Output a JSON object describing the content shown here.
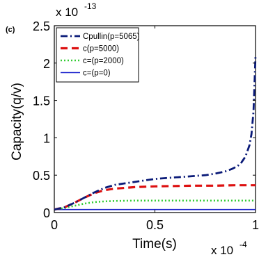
{
  "chart_data": {
    "type": "line",
    "panel_tag": "(c)",
    "xlabel": "Time(s)",
    "ylabel": "Capacity(q/v)",
    "x_multiplier": {
      "base": "x 10",
      "exponent": "-4"
    },
    "y_multiplier": {
      "base": "x 10",
      "exponent": "-13"
    },
    "xlim": [
      0,
      1
    ],
    "ylim": [
      0,
      2.5
    ],
    "x_ticks": [
      0,
      0.5,
      1
    ],
    "x_tick_labels": [
      "0",
      "0.5",
      "1"
    ],
    "y_ticks": [
      0,
      0.5,
      1,
      1.5,
      2,
      2.5
    ],
    "y_tick_labels": [
      "0",
      "0.5",
      "1",
      "1.5",
      "2",
      "2.5"
    ],
    "grid": false,
    "legend_position": "top-left",
    "series": [
      {
        "name": "Cpullin(p=5065)",
        "color": "#0a1a78",
        "style": "dashdot",
        "x": [
          0,
          0.05,
          0.1,
          0.15,
          0.2,
          0.25,
          0.3,
          0.35,
          0.4,
          0.45,
          0.5,
          0.55,
          0.6,
          0.65,
          0.7,
          0.75,
          0.8,
          0.85,
          0.88,
          0.91,
          0.93,
          0.95,
          0.97,
          0.98,
          0.99,
          1.0
        ],
        "y": [
          0.04,
          0.07,
          0.13,
          0.2,
          0.27,
          0.33,
          0.37,
          0.39,
          0.41,
          0.43,
          0.45,
          0.46,
          0.47,
          0.48,
          0.49,
          0.5,
          0.52,
          0.55,
          0.58,
          0.62,
          0.67,
          0.75,
          0.9,
          1.05,
          1.35,
          2.1
        ]
      },
      {
        "name": "c(p=5000)",
        "color": "#dd1111",
        "style": "dashed",
        "x": [
          0,
          0.05,
          0.1,
          0.15,
          0.2,
          0.25,
          0.3,
          0.35,
          0.4,
          0.5,
          0.6,
          0.7,
          0.8,
          0.9,
          1.0
        ],
        "y": [
          0.04,
          0.07,
          0.13,
          0.2,
          0.26,
          0.3,
          0.32,
          0.33,
          0.34,
          0.35,
          0.355,
          0.36,
          0.36,
          0.365,
          0.365
        ]
      },
      {
        "name": "c=(p=2000)",
        "color": "#33cc33",
        "style": "dotted",
        "x": [
          0,
          0.05,
          0.1,
          0.15,
          0.2,
          0.25,
          0.3,
          0.4,
          0.5,
          0.6,
          0.7,
          0.8,
          0.9,
          1.0
        ],
        "y": [
          0.04,
          0.06,
          0.09,
          0.12,
          0.14,
          0.15,
          0.155,
          0.16,
          0.16,
          0.16,
          0.16,
          0.16,
          0.16,
          0.16
        ]
      },
      {
        "name": "c=(p=0)",
        "color": "#1a22cc",
        "style": "solid",
        "x": [
          0,
          0.1,
          0.2,
          0.3,
          0.4,
          0.5,
          0.6,
          0.7,
          0.8,
          0.9,
          1.0
        ],
        "y": [
          0.04,
          0.04,
          0.04,
          0.04,
          0.04,
          0.04,
          0.04,
          0.04,
          0.04,
          0.04,
          0.04
        ]
      }
    ]
  }
}
